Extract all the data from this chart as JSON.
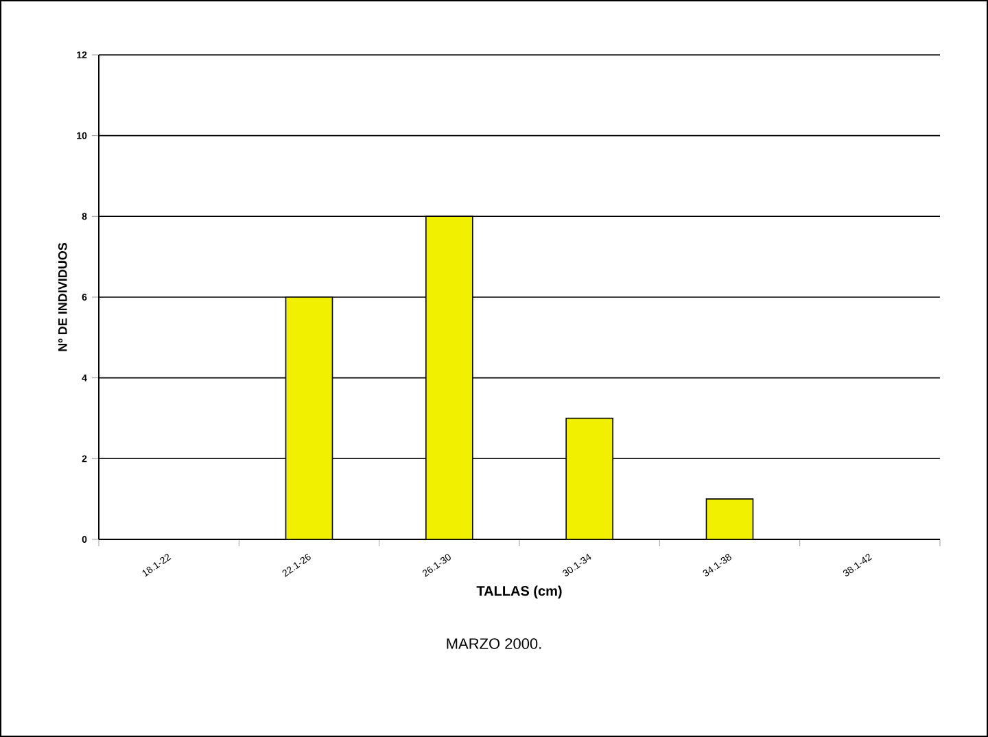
{
  "chart_data": {
    "type": "bar",
    "ylabel": "Nº DE INDIVIDUOS",
    "xlabel": "TALLAS (cm)",
    "categories": [
      "18.1-22",
      "22.1-26",
      "26.1-30",
      "30.1-34",
      "34.1-38",
      "38.1-42"
    ],
    "values": [
      0,
      6,
      8,
      3,
      1,
      0
    ],
    "color": "#f0f000",
    "ylim": [
      0,
      12
    ],
    "yticks": [
      0,
      2,
      4,
      6,
      8,
      10,
      12
    ],
    "grid": "y",
    "annotations": [
      "MARZO 2000."
    ]
  }
}
